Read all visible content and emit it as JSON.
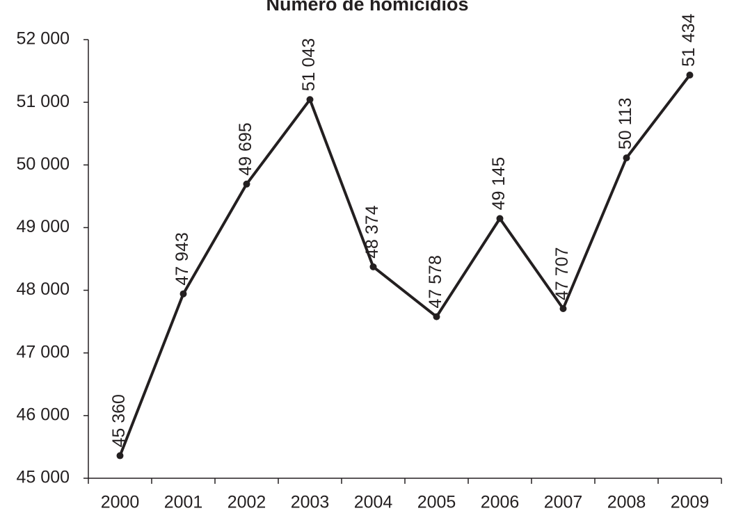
{
  "chart_data": {
    "type": "line",
    "title": "Número de homicídios",
    "categories": [
      "2000",
      "2001",
      "2002",
      "2003",
      "2004",
      "2005",
      "2006",
      "2007",
      "2008",
      "2009"
    ],
    "series": [
      {
        "name": "Número de homicídios",
        "color": "#231f20",
        "values": [
          45360,
          47943,
          49695,
          51043,
          48374,
          47578,
          49145,
          47707,
          50113,
          51434
        ],
        "value_labels": [
          "45 360",
          "47 943",
          "49 695",
          "51 043",
          "48 374",
          "47 578",
          "49 145",
          "47 707",
          "50 113",
          "51 434"
        ]
      }
    ],
    "ylim": [
      45000,
      52000
    ],
    "yticks": [
      {
        "value": 45000,
        "label": "45 000"
      },
      {
        "value": 46000,
        "label": "46 000"
      },
      {
        "value": 47000,
        "label": "47 000"
      },
      {
        "value": 48000,
        "label": "48 000"
      },
      {
        "value": 49000,
        "label": "49 000"
      },
      {
        "value": 50000,
        "label": "50 000"
      },
      {
        "value": 51000,
        "label": "51 000"
      },
      {
        "value": 52000,
        "label": "52 000"
      }
    ],
    "grid": false
  }
}
